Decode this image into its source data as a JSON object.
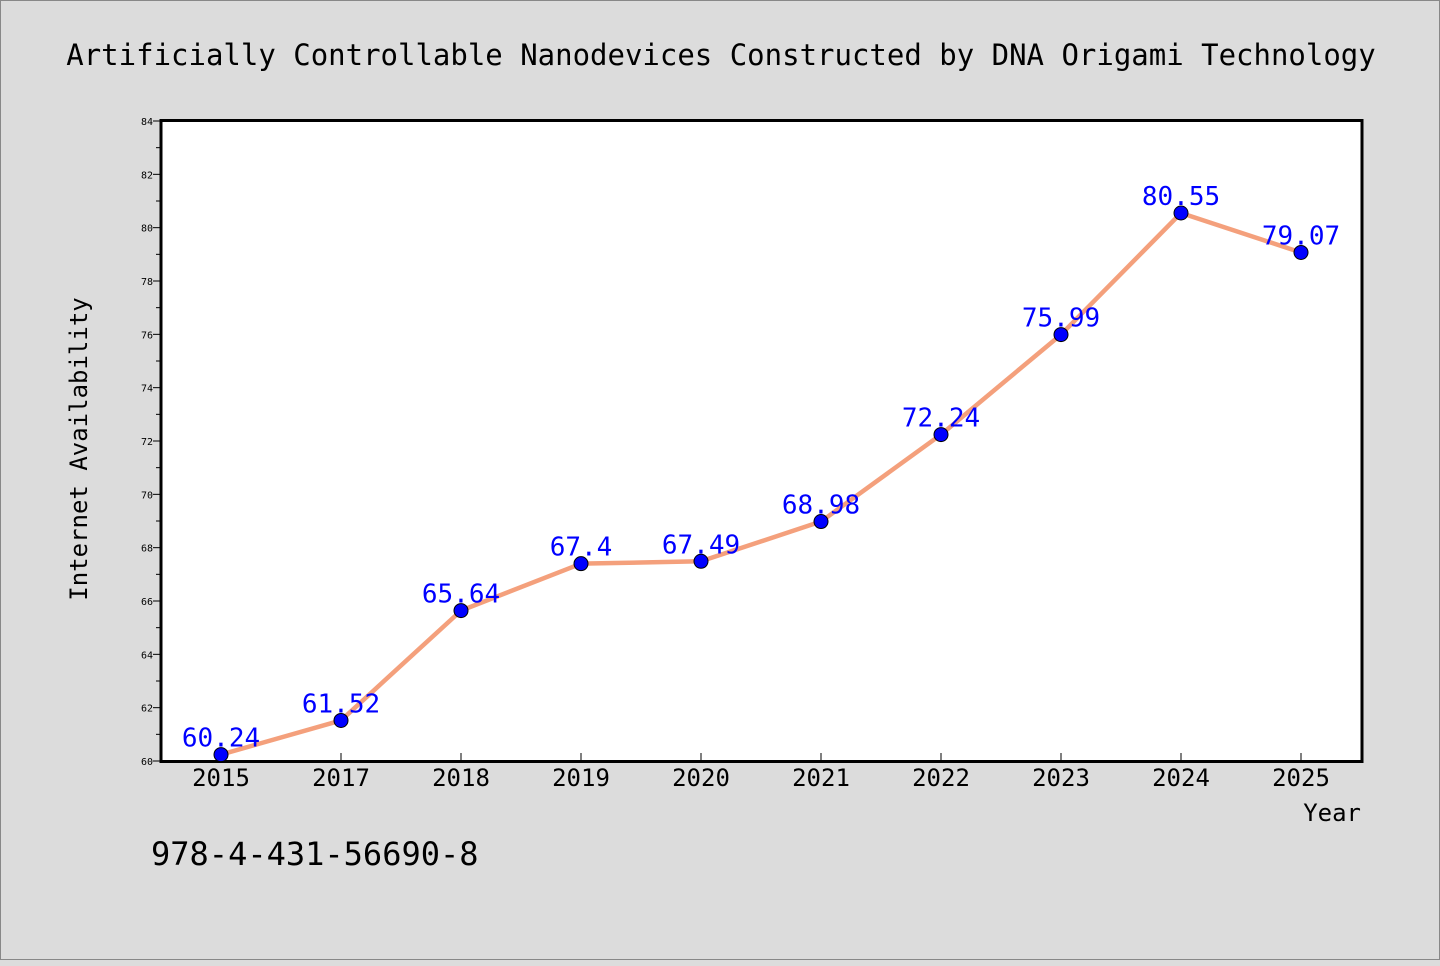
{
  "chart_data": {
    "type": "line",
    "title": "Artificially Controllable Nanodevices Constructed by DNA Origami Technology",
    "xlabel": "Year",
    "ylabel": "Internet Availability",
    "categories": [
      "2015",
      "2017",
      "2018",
      "2019",
      "2020",
      "2021",
      "2022",
      "2023",
      "2024",
      "2025"
    ],
    "values": [
      60.24,
      61.52,
      65.64,
      67.4,
      67.49,
      68.98,
      72.24,
      75.99,
      80.55,
      79.07
    ],
    "data_labels": [
      "60.24",
      "61.52",
      "65.64",
      "67.4",
      "67.49",
      "68.98",
      "72.24",
      "75.99",
      "80.55",
      "79.07"
    ],
    "ylim": [
      60,
      84
    ],
    "yticks": [
      "60",
      "62",
      "64",
      "66",
      "68",
      "70",
      "72",
      "74",
      "76",
      "78",
      "80",
      "82",
      "84"
    ],
    "grid": false,
    "legend": "none",
    "line_color": "#f4a07c",
    "marker_color": "#0000ff",
    "label_color": "#0000ff"
  },
  "footer_text": "978-4-431-56690-8"
}
